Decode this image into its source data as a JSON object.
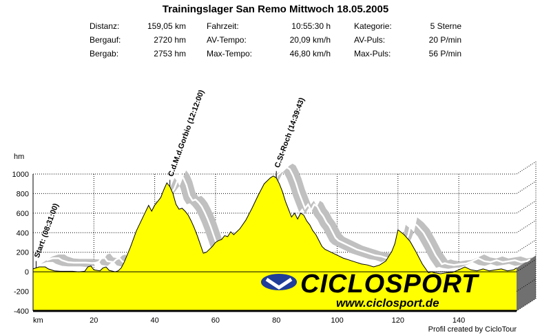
{
  "title": "Trainingslager San Remo Mittwoch 18.05.2005",
  "stats": [
    {
      "label": "Distanz:",
      "value": "159,05 km"
    },
    {
      "label": "Bergauf:",
      "value": "2720 hm"
    },
    {
      "label": "Bergab:",
      "value": "2753 hm"
    },
    {
      "label": "Fahrzeit:",
      "value": "10:55:30 h"
    },
    {
      "label": "AV-Tempo:",
      "value": "20,09 km/h"
    },
    {
      "label": "Max-Tempo:",
      "value": "46,80 km/h"
    },
    {
      "label": "Kategorie:",
      "value": "5 Sterne"
    },
    {
      "label": "AV-Puls:",
      "value": "20 P/min"
    },
    {
      "label": "Max-Puls:",
      "value": "56 P/min"
    }
  ],
  "credit": "Profil created by CicloTour",
  "watermark": {
    "brand": "CICLOSPORT",
    "url": "www.ciclosport.de"
  },
  "colors": {
    "fill": "#ffff00",
    "shadow": "#c0c0c0",
    "base": "#707070"
  },
  "chart_data": {
    "type": "area",
    "ylabel": "hm",
    "xlabel": "km",
    "xlim": [
      0,
      159
    ],
    "ylim": [
      -400,
      1000
    ],
    "xticks": [
      20,
      40,
      60,
      80,
      100,
      120,
      140
    ],
    "yticks": [
      1000,
      800,
      600,
      400,
      200,
      0,
      -200,
      -400
    ],
    "grid": true,
    "annotations": [
      {
        "x": 1,
        "label": "Start: (08:31:00)"
      },
      {
        "x": 45,
        "label": "C.d.M.d.Gorbio (12:12:00)"
      },
      {
        "x": 80,
        "label": "C.St-Roch (14:39:43)"
      }
    ],
    "profile": {
      "x": [
        0,
        2,
        4,
        5,
        7,
        9,
        11,
        13,
        15,
        17,
        18,
        19,
        20,
        22,
        23,
        24,
        25,
        27,
        28,
        29,
        30,
        32,
        34,
        36,
        38,
        39,
        40,
        41,
        42,
        43,
        44,
        45,
        46,
        47,
        48,
        49,
        50,
        51,
        52,
        53,
        54,
        55,
        56,
        57,
        58,
        59,
        60,
        61,
        62,
        63,
        64,
        65,
        66,
        67,
        68,
        70,
        72,
        74,
        76,
        78,
        79,
        80,
        81,
        82,
        83,
        84,
        85,
        86,
        87,
        88,
        89,
        90,
        91,
        92,
        93,
        94,
        95,
        96,
        98,
        100,
        102,
        104,
        106,
        108,
        110,
        112,
        114,
        116,
        118,
        119,
        120,
        122,
        124,
        126,
        128,
        130,
        131,
        132,
        134,
        136,
        138,
        140,
        142,
        144,
        146,
        148,
        150,
        152,
        154,
        156,
        158,
        159
      ],
      "y": [
        30,
        50,
        50,
        30,
        10,
        5,
        5,
        5,
        0,
        5,
        50,
        60,
        20,
        10,
        40,
        50,
        15,
        0,
        10,
        40,
        100,
        250,
        420,
        550,
        680,
        620,
        680,
        720,
        760,
        840,
        910,
        870,
        800,
        690,
        640,
        650,
        620,
        580,
        520,
        450,
        370,
        280,
        190,
        200,
        230,
        260,
        300,
        320,
        330,
        370,
        360,
        410,
        380,
        410,
        440,
        530,
        650,
        780,
        900,
        960,
        980,
        960,
        900,
        820,
        720,
        640,
        560,
        600,
        540,
        600,
        580,
        520,
        480,
        420,
        380,
        320,
        260,
        230,
        200,
        170,
        140,
        120,
        100,
        80,
        70,
        50,
        70,
        110,
        210,
        290,
        430,
        380,
        310,
        200,
        80,
        -10,
        0,
        -10,
        -20,
        -10,
        -5,
        20,
        50,
        20,
        10,
        30,
        10,
        20,
        30,
        10,
        20,
        40
      ]
    }
  }
}
